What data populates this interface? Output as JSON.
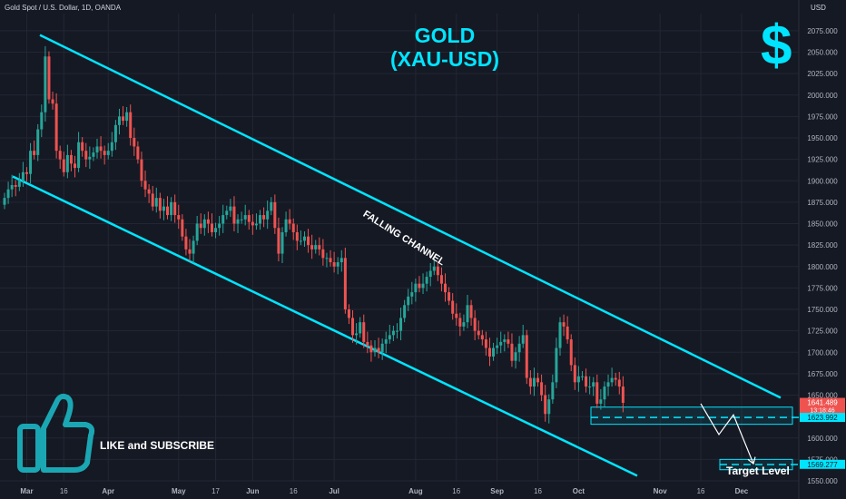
{
  "header": {
    "symbol": "Gold Spot / U.S. Dollar, 1D, OANDA",
    "axis_unit": "USD"
  },
  "title": {
    "line1": "GOLD",
    "line2": "(XAU-USD)"
  },
  "icons": {
    "dollar": "$",
    "thumb": "thumbs-up-icon"
  },
  "cta": {
    "text": "LIKE and SUBSCRIBE"
  },
  "annotations": {
    "channel_label": "FALLING CHANNEL",
    "target_label": "Target Level"
  },
  "colors": {
    "background": "#151924",
    "accent": "#00e5ff",
    "up": "#26a69a",
    "down": "#ef5350",
    "grid": "#232733",
    "axis_text": "#b2b5be"
  },
  "chart_data": {
    "type": "candlestick",
    "ylim": [
      1550,
      2095
    ],
    "y_ticks": [
      1550,
      1575,
      1600,
      1625,
      1650,
      1675,
      1700,
      1725,
      1750,
      1775,
      1800,
      1825,
      1850,
      1875,
      1900,
      1925,
      1950,
      1975,
      2000,
      2025,
      2050,
      2075
    ],
    "y_tick_labels": [
      "1550.000",
      "1575.000",
      "1600.000",
      "1625.000",
      "1650.000",
      "1675.000",
      "1700.000",
      "1725.000",
      "1750.000",
      "1775.000",
      "1800.000",
      "1825.000",
      "1850.000",
      "1875.000",
      "1900.000",
      "1925.000",
      "1950.000",
      "1975.000",
      "2000.000",
      "2025.000",
      "2050.000",
      "2075.000"
    ],
    "x_ticks": [
      {
        "label": "Mar",
        "bar": 6
      },
      {
        "label": "16",
        "bar": 16
      },
      {
        "label": "Apr",
        "bar": 28
      },
      {
        "label": "May",
        "bar": 47
      },
      {
        "label": "17",
        "bar": 57
      },
      {
        "label": "Jun",
        "bar": 67
      },
      {
        "label": "16",
        "bar": 78
      },
      {
        "label": "Jul",
        "bar": 89
      },
      {
        "label": "Aug",
        "bar": 111
      },
      {
        "label": "16",
        "bar": 122
      },
      {
        "label": "Sep",
        "bar": 133
      },
      {
        "label": "16",
        "bar": 144
      },
      {
        "label": "Oct",
        "bar": 155
      },
      {
        "label": "Nov",
        "bar": 177
      },
      {
        "label": "16",
        "bar": 188
      },
      {
        "label": "Dec",
        "bar": 199
      }
    ],
    "price_labels": [
      {
        "value": 1641.489,
        "text": "1641.489",
        "sub": "13:18:46",
        "color": "#ef5350"
      },
      {
        "value": 1623.992,
        "text": "1623.992",
        "color": "#00e5ff"
      },
      {
        "value": 1569.277,
        "text": "1569.277",
        "color": "#00e5ff"
      }
    ],
    "closes": [
      1880,
      1890,
      1895,
      1893,
      1900,
      1910,
      1908,
      1935,
      1930,
      1960,
      1980,
      2045,
      1995,
      1990,
      1935,
      1925,
      1910,
      1930,
      1920,
      1915,
      1945,
      1935,
      1925,
      1928,
      1933,
      1940,
      1935,
      1930,
      1935,
      1945,
      1965,
      1975,
      1970,
      1980,
      1950,
      1940,
      1925,
      1900,
      1890,
      1885,
      1870,
      1880,
      1865,
      1870,
      1860,
      1875,
      1860,
      1855,
      1835,
      1820,
      1815,
      1830,
      1850,
      1845,
      1855,
      1850,
      1840,
      1845,
      1850,
      1860,
      1865,
      1870,
      1850,
      1855,
      1855,
      1860,
      1852,
      1848,
      1850,
      1860,
      1855,
      1865,
      1875,
      1845,
      1815,
      1840,
      1855,
      1850,
      1840,
      1830,
      1830,
      1835,
      1825,
      1820,
      1825,
      1820,
      1810,
      1810,
      1805,
      1800,
      1805,
      1810,
      1750,
      1740,
      1720,
      1722,
      1735,
      1712,
      1708,
      1700,
      1705,
      1700,
      1710,
      1715,
      1720,
      1725,
      1725,
      1740,
      1755,
      1765,
      1770,
      1780,
      1775,
      1780,
      1788,
      1795,
      1800,
      1790,
      1780,
      1770,
      1760,
      1745,
      1740,
      1730,
      1735,
      1755,
      1740,
      1725,
      1720,
      1715,
      1705,
      1695,
      1705,
      1708,
      1712,
      1715,
      1710,
      1690,
      1700,
      1710,
      1720,
      1670,
      1660,
      1670,
      1665,
      1650,
      1628,
      1645,
      1665,
      1705,
      1735,
      1730,
      1715,
      1685,
      1665,
      1672,
      1672,
      1660,
      1660,
      1665,
      1640,
      1645,
      1660,
      1665,
      1670,
      1668,
      1660,
      1641
    ]
  }
}
